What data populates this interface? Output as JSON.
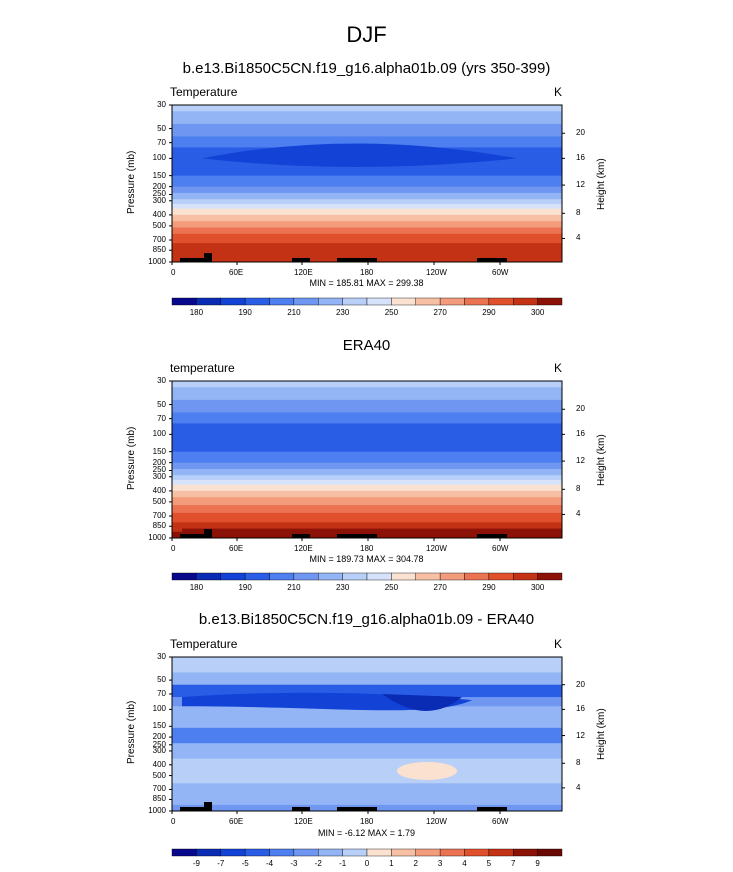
{
  "title": "DJF",
  "panels": [
    {
      "title": "b.e13.Bi1850C5CN.f19_g16.alpha01b.09 (yrs 350-399)",
      "field_label": "Temperature",
      "units": "K",
      "stats": "MIN = 185.81  MAX = 299.38",
      "colorbar_labels": [
        "180",
        "190",
        "210",
        "230",
        "250",
        "270",
        "290",
        "300"
      ]
    },
    {
      "title": "ERA40",
      "field_label": "temperature",
      "units": "K",
      "stats": "MIN = 189.73  MAX = 304.78",
      "colorbar_labels": [
        "180",
        "190",
        "210",
        "230",
        "250",
        "270",
        "290",
        "300"
      ]
    },
    {
      "title": "b.e13.Bi1850C5CN.f19_g16.alpha01b.09 - ERA40",
      "field_label": "Temperature",
      "units": "K",
      "stats": "MIN = -6.12  MAX =  1.79",
      "colorbar_labels": [
        "-9",
        "-7",
        "-5",
        "-4",
        "-3",
        "-2",
        "-1",
        "0",
        "1",
        "2",
        "3",
        "4",
        "5",
        "7",
        "9"
      ]
    }
  ],
  "axes": {
    "ylabel": "Pressure (mb)",
    "ylabel_right": "Height (km)",
    "pressure_ticks": [
      "30",
      "50",
      "70",
      "100",
      "150",
      "200",
      "250",
      "300",
      "400",
      "500",
      "700",
      "850",
      "1000"
    ],
    "height_ticks": [
      "20",
      "16",
      "12",
      "8",
      "4"
    ],
    "lon_ticks": [
      "0",
      "60E",
      "120E",
      "180",
      "120W",
      "60W"
    ]
  },
  "chart_data": [
    {
      "type": "heatmap",
      "title": "b.e13.Bi1850C5CN.f19_g16.alpha01b.09 (yrs 350-399)",
      "variable": "Temperature",
      "units": "K",
      "x": [
        "0",
        "60E",
        "120E",
        "180",
        "120W",
        "60W"
      ],
      "y_pressure_mb": [
        30,
        50,
        70,
        100,
        150,
        200,
        250,
        300,
        400,
        500,
        700,
        850,
        1000
      ],
      "zonal_mean_K": [
        225,
        215,
        205,
        197,
        205,
        213,
        220,
        228,
        243,
        257,
        275,
        285,
        292
      ],
      "levels": [
        180,
        185,
        190,
        200,
        210,
        220,
        230,
        240,
        250,
        260,
        270,
        280,
        290,
        295,
        300
      ],
      "min": 185.81,
      "max": 299.38
    },
    {
      "type": "heatmap",
      "title": "ERA40",
      "variable": "temperature",
      "units": "K",
      "x": [
        "0",
        "60E",
        "120E",
        "180",
        "120W",
        "60W"
      ],
      "y_pressure_mb": [
        30,
        50,
        70,
        100,
        150,
        200,
        250,
        300,
        400,
        500,
        700,
        850,
        1000
      ],
      "zonal_mean_K": [
        225,
        215,
        208,
        200,
        207,
        215,
        222,
        230,
        245,
        258,
        277,
        288,
        297
      ],
      "levels": [
        180,
        185,
        190,
        200,
        210,
        220,
        230,
        240,
        250,
        260,
        270,
        280,
        290,
        295,
        300
      ],
      "min": 189.73,
      "max": 304.78
    },
    {
      "type": "heatmap",
      "title": "b.e13.Bi1850C5CN.f19_g16.alpha01b.09 - ERA40",
      "variable": "Temperature",
      "units": "K",
      "x": [
        "0",
        "60E",
        "120E",
        "180",
        "120W",
        "60W"
      ],
      "y_pressure_mb": [
        30,
        50,
        70,
        100,
        150,
        200,
        250,
        300,
        400,
        500,
        700,
        850,
        1000
      ],
      "zonal_mean_K": [
        -1,
        -1.5,
        -2.5,
        -2,
        -1.5,
        -2.5,
        -1.5,
        -1.5,
        -1,
        -1,
        -1,
        -1,
        -1.5
      ],
      "levels": [
        -9,
        -7,
        -5,
        -4,
        -3,
        -2,
        -1,
        0,
        1,
        2,
        3,
        4,
        5,
        7,
        9
      ],
      "min": -6.12,
      "max": 1.79
    }
  ],
  "colors": {
    "scale": [
      "#08088c",
      "#0a2bb4",
      "#1243d6",
      "#2a5de6",
      "#4e7ff0",
      "#6f97f2",
      "#94b5f5",
      "#b8cff8",
      "#d6e2fa",
      "#fbe1d0",
      "#f7c0a4",
      "#f39c7c",
      "#ec7352",
      "#e0502c",
      "#c43216",
      "#8c1208"
    ]
  }
}
